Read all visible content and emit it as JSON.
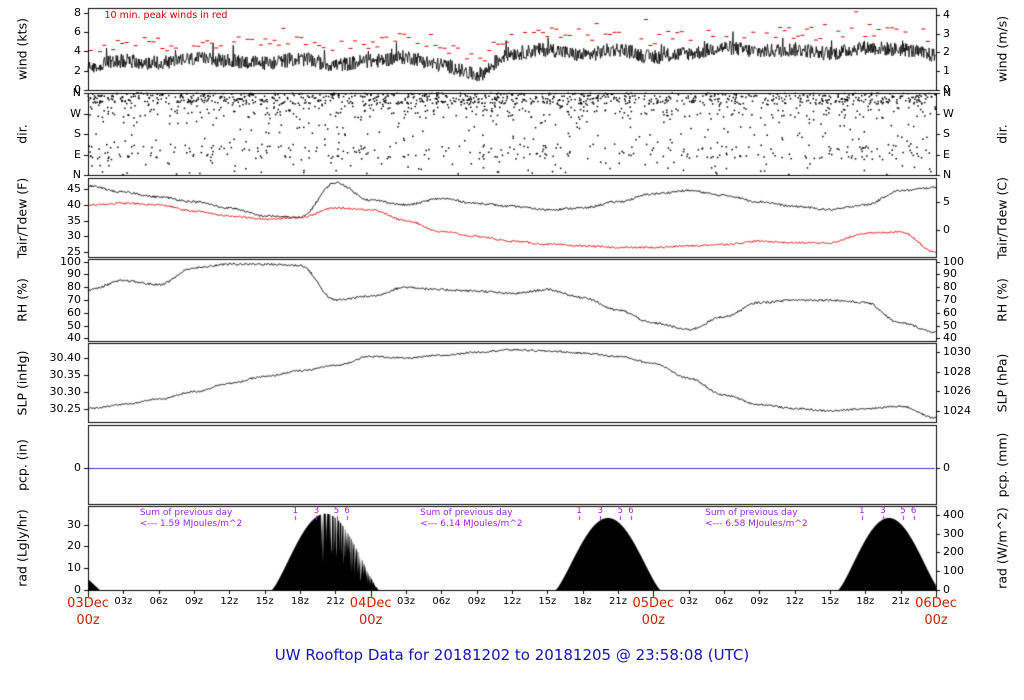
{
  "title": "UW Rooftop Data for 20181202  to  20181205 @ 23:58:08  (UTC)",
  "colors": {
    "title": "#1414b8",
    "axis_date": "#cc2200",
    "annotation_red": "#cc0000",
    "annotation_purple": "#a020f0",
    "precip_line": "#3333cc",
    "series_black": "#000000",
    "series_red": "#dd0000"
  },
  "x_axis": {
    "hours_span": 72,
    "hour_tick_labels": [
      "03z",
      "06z",
      "09z",
      "12z",
      "15z",
      "18z",
      "21z"
    ],
    "day_labels": [
      {
        "date": "03Dec",
        "time": "00z",
        "hour": 0
      },
      {
        "date": "04Dec",
        "time": "00z",
        "hour": 24
      },
      {
        "date": "05Dec",
        "time": "00z",
        "hour": 48
      },
      {
        "date": "06Dec",
        "time": "00z",
        "hour": 72
      }
    ]
  },
  "chart_data": [
    {
      "id": "wind",
      "type": "line",
      "ylabel_left": "wind (kts)",
      "ylabel_right": "wind (m/s)",
      "ylim": [
        0,
        8.5
      ],
      "yticks_left": {
        "values": [
          0,
          2,
          4,
          6,
          8
        ],
        "labels": [
          "0",
          "2",
          "4",
          "6",
          "8"
        ]
      },
      "yticks_right": {
        "values": [
          0,
          1.944,
          3.889,
          5.833,
          7.778
        ],
        "labels": [
          "0",
          "1",
          "2",
          "3",
          "4"
        ]
      },
      "annotation": "10 min. peak winds in red",
      "x": [
        0,
        3,
        6,
        9,
        12,
        15,
        18,
        21,
        24,
        27,
        30,
        33,
        36,
        39,
        42,
        45,
        48,
        51,
        54,
        57,
        60,
        63,
        66,
        69,
        72
      ],
      "series": [
        {
          "name": "wind speed (kts)",
          "color": "#000000",
          "noise": 0.75,
          "values": [
            2.5,
            3.0,
            2.8,
            3.2,
            3.0,
            2.8,
            3.2,
            2.6,
            3.0,
            3.4,
            2.6,
            1.6,
            3.8,
            4.2,
            3.6,
            4.2,
            3.4,
            3.8,
            4.4,
            4.0,
            4.2,
            3.8,
            4.4,
            4.2,
            3.6
          ]
        },
        {
          "name": "10 min. peak winds (kts)",
          "color": "#dd0000",
          "style": "peak-dashes",
          "offset": 1.1
        }
      ]
    },
    {
      "id": "dir",
      "type": "scatter",
      "ylabel_left": "dir.",
      "ylabel_right": "dir.",
      "ylim": [
        0,
        360
      ],
      "yticks_left": {
        "values": [
          0,
          90,
          180,
          270,
          360
        ],
        "labels": [
          "N",
          "E",
          "S",
          "W",
          "N"
        ]
      },
      "yticks_right": {
        "values": [
          0,
          90,
          180,
          270,
          360
        ],
        "labels": [
          "N",
          "E",
          "S",
          "W",
          "N"
        ]
      },
      "scatter": {
        "n": 1650,
        "bands": [
          {
            "frac": 0.5,
            "min": 312,
            "max": 360
          },
          {
            "frac": 0.13,
            "min": 250,
            "max": 312
          },
          {
            "frac": 0.12,
            "min": 70,
            "max": 135
          },
          {
            "frac": 0.25,
            "min": 0,
            "max": 360
          }
        ]
      }
    },
    {
      "id": "tair",
      "type": "line",
      "ylabel_left": "Tair/Tdew (F)",
      "ylabel_right": "Tair/Tdew (C)",
      "ylim": [
        23.5,
        48.5
      ],
      "yticks_left": {
        "values": [
          25,
          30,
          35,
          40,
          45
        ],
        "labels": [
          "25",
          "30",
          "35",
          "40",
          "45"
        ]
      },
      "yticks_right": {
        "values": [
          32,
          41
        ],
        "labels": [
          "0",
          "5"
        ]
      },
      "x": [
        0,
        3,
        6,
        9,
        12,
        15,
        18,
        21,
        24,
        27,
        30,
        33,
        36,
        39,
        42,
        45,
        48,
        51,
        54,
        57,
        60,
        63,
        66,
        69,
        72
      ],
      "series": [
        {
          "name": "Tair (F)",
          "color": "#000000",
          "noise": 0.35,
          "values": [
            46,
            44,
            42.5,
            41,
            39,
            36.5,
            36,
            47,
            41.5,
            40,
            42,
            40.5,
            39.5,
            38.5,
            39,
            41,
            43.5,
            44.5,
            43,
            41,
            39.5,
            38.5,
            40,
            44.5,
            45.5
          ]
        },
        {
          "name": "Tdew (F)",
          "color": "#dd0000",
          "noise": 0.3,
          "values": [
            40,
            40.5,
            40,
            38,
            36.5,
            35.5,
            36,
            39,
            38.5,
            35,
            31.5,
            30,
            28.5,
            27.5,
            27,
            26.5,
            26.5,
            27,
            27.5,
            28.5,
            28,
            28,
            31,
            31.5,
            25
          ]
        }
      ]
    },
    {
      "id": "rh",
      "type": "line",
      "ylabel_left": "RH (%)",
      "ylabel_right": "RH (%)",
      "ylim": [
        38,
        102
      ],
      "yticks_left": {
        "values": [
          40,
          50,
          60,
          70,
          80,
          90,
          100
        ],
        "labels": [
          "40",
          "50",
          "60",
          "70",
          "80",
          "90",
          "100"
        ]
      },
      "yticks_right": {
        "values": [
          40,
          50,
          60,
          70,
          80,
          90,
          100
        ],
        "labels": [
          "40",
          "50",
          "60",
          "70",
          "80",
          "90",
          "100"
        ]
      },
      "x": [
        0,
        3,
        6,
        9,
        12,
        15,
        18,
        21,
        24,
        27,
        30,
        33,
        36,
        39,
        42,
        45,
        48,
        51,
        54,
        57,
        60,
        63,
        66,
        69,
        72
      ],
      "series": [
        {
          "name": "relative humidity (%)",
          "color": "#000000",
          "noise": 0.9,
          "values": [
            78,
            85,
            82,
            95,
            98,
            98,
            97,
            70,
            73,
            80,
            78,
            77,
            75,
            78,
            72,
            62,
            52,
            47,
            57,
            68,
            70,
            70,
            68,
            52,
            45
          ]
        }
      ]
    },
    {
      "id": "slp",
      "type": "line",
      "ylabel_left": "SLP (inHg)",
      "ylabel_right": "SLP (hPa)",
      "ylim": [
        30.21,
        30.445
      ],
      "yticks_left": {
        "values": [
          30.25,
          30.3,
          30.35,
          30.4
        ],
        "labels": [
          "30.25",
          "30.30",
          "30.35",
          "30.40"
        ]
      },
      "yticks_right": {
        "values": [
          30.242,
          30.301,
          30.36,
          30.419
        ],
        "labels": [
          "1024",
          "1026",
          "1028",
          "1030"
        ]
      },
      "x": [
        0,
        3,
        6,
        9,
        12,
        15,
        18,
        21,
        24,
        27,
        30,
        33,
        36,
        39,
        42,
        45,
        48,
        51,
        54,
        57,
        60,
        63,
        66,
        69,
        72
      ],
      "series": [
        {
          "name": "sea level pressure (inHg)",
          "color": "#000000",
          "noise": 0.0028,
          "values": [
            30.25,
            30.262,
            30.278,
            30.3,
            30.325,
            30.345,
            30.362,
            30.378,
            30.405,
            30.4,
            30.408,
            30.418,
            30.425,
            30.421,
            30.415,
            30.405,
            30.385,
            30.34,
            30.29,
            30.262,
            30.25,
            30.243,
            30.25,
            30.257,
            30.222
          ]
        }
      ]
    },
    {
      "id": "pcp",
      "type": "flat",
      "ylabel_left": "pcp. (in)",
      "ylabel_right": "pcp. (mm)",
      "ylim": [
        -0.45,
        0.55
      ],
      "yticks_left": {
        "values": [
          0
        ],
        "labels": [
          "0"
        ]
      },
      "yticks_right": {
        "values": [
          0
        ],
        "labels": [
          "0"
        ]
      },
      "series": [
        {
          "name": "precipitation (in)",
          "color": "#3333cc",
          "value": 0
        }
      ]
    },
    {
      "id": "rad",
      "type": "solar",
      "ylabel_left": "rad (Lgly/hr)",
      "ylabel_right": "rad (W/m^2)",
      "ylim": [
        0,
        38.5
      ],
      "yticks_left": {
        "values": [
          0,
          10,
          20,
          30
        ],
        "labels": [
          "0",
          "10",
          "20",
          "30"
        ]
      },
      "yticks_right": {
        "values": [
          0,
          8.6,
          17.2,
          25.8,
          34.4
        ],
        "labels": [
          "0",
          "100",
          "200",
          "300",
          "400"
        ]
      },
      "solar_days": [
        {
          "start": 15.6,
          "end": 24.7,
          "peak": 35,
          "jagged": true
        },
        {
          "start": 39.7,
          "end": 48.6,
          "peak": 33,
          "jagged": false
        },
        {
          "start": 63.7,
          "end": 72.3,
          "peak": 33,
          "jagged": false
        }
      ],
      "dawn_stub": {
        "end": 1.0,
        "peak": 5
      },
      "sum_annotations": [
        {
          "line1": "Sum of previous day",
          "line2": "<--- 1.59 MJoules/m^2",
          "hour": 4.4
        },
        {
          "line1": "Sum of previous day",
          "line2": "<--- 6.14 MJoules/m^2",
          "hour": 28.2
        },
        {
          "line1": "Sum of previous day",
          "line2": "<--- 6.58 MJoules/m^2",
          "hour": 52.4
        }
      ],
      "hour_marks": {
        "labels": [
          "1",
          "3",
          "5",
          "6"
        ],
        "offsets": [
          2.0,
          3.8,
          5.5,
          6.4
        ]
      }
    }
  ]
}
